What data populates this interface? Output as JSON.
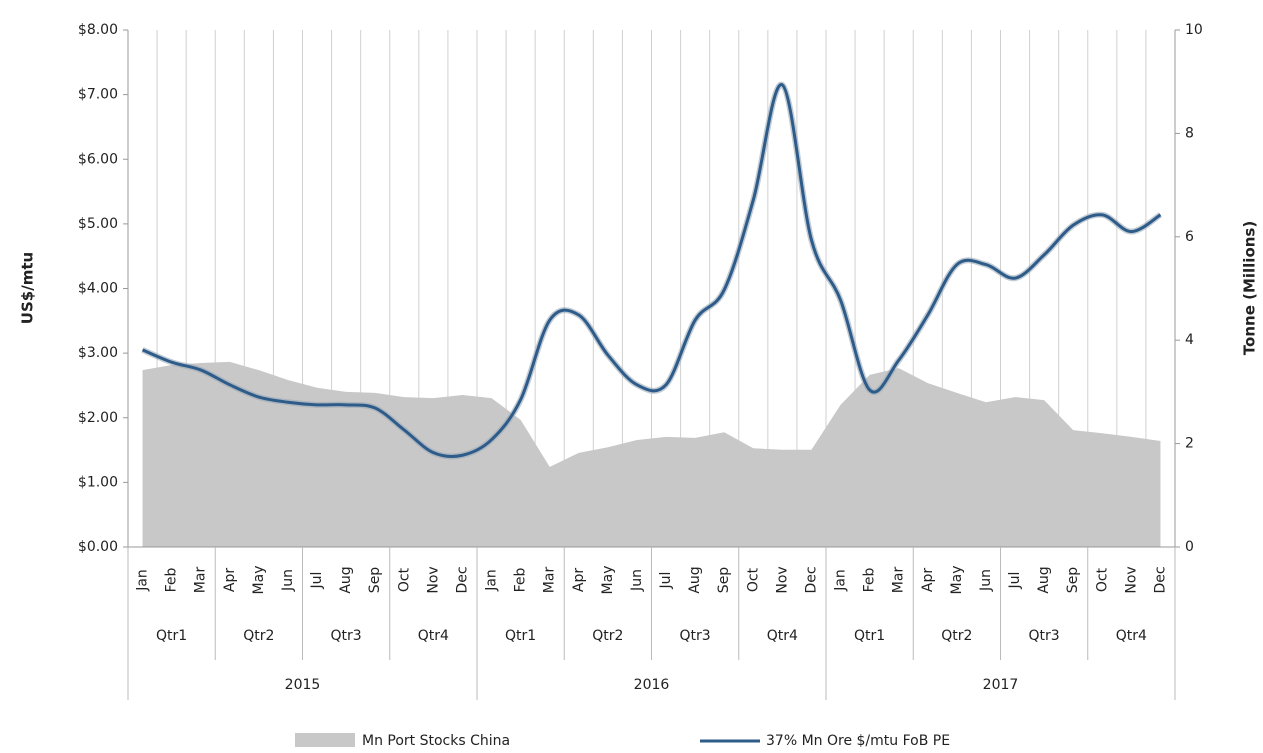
{
  "chart_data": {
    "type": "line",
    "categories": [
      "Jan",
      "Feb",
      "Mar",
      "Apr",
      "May",
      "Jun",
      "Jul",
      "Aug",
      "Sep",
      "Oct",
      "Nov",
      "Dec",
      "Jan",
      "Feb",
      "Mar",
      "Apr",
      "May",
      "Jun",
      "Jul",
      "Aug",
      "Sep",
      "Oct",
      "Nov",
      "Dec",
      "Jan",
      "Feb",
      "Mar",
      "Apr",
      "May",
      "Jun",
      "Jul",
      "Aug",
      "Sep",
      "Oct",
      "Nov",
      "Dec"
    ],
    "quarters": [
      "Qtr1",
      "Qtr2",
      "Qtr3",
      "Qtr4",
      "Qtr1",
      "Qtr2",
      "Qtr3",
      "Qtr4",
      "Qtr1",
      "Qtr2",
      "Qtr3",
      "Qtr4"
    ],
    "years": [
      "2015",
      "2016",
      "2017"
    ],
    "y_label": "US$/mtu",
    "y2_label": "Tonne (Millions)",
    "ylim": [
      0,
      8
    ],
    "yticks": [
      {
        "value": 0,
        "label": "$0.00"
      },
      {
        "value": 1,
        "label": "$1.00"
      },
      {
        "value": 2,
        "label": "$2.00"
      },
      {
        "value": 3,
        "label": "$3.00"
      },
      {
        "value": 4,
        "label": "$4.00"
      },
      {
        "value": 5,
        "label": "$5.00"
      },
      {
        "value": 6,
        "label": "$6.00"
      },
      {
        "value": 7,
        "label": "$7.00"
      },
      {
        "value": 8,
        "label": "$8.00"
      }
    ],
    "y2lim": [
      0,
      10
    ],
    "y2ticks": [
      0,
      2,
      4,
      6,
      8,
      10
    ],
    "xgrid": true,
    "legend": "bottom",
    "series": [
      {
        "name": "Mn Port Stocks China",
        "type": "area",
        "axis": "y2",
        "color": "#c8c8c8",
        "values": [
          3.42,
          3.52,
          3.56,
          3.58,
          3.42,
          3.23,
          3.08,
          3.0,
          2.98,
          2.9,
          2.88,
          2.94,
          2.88,
          2.46,
          1.55,
          1.82,
          1.93,
          2.07,
          2.13,
          2.11,
          2.22,
          1.91,
          1.88,
          1.88,
          2.75,
          3.33,
          3.46,
          3.17,
          2.98,
          2.8,
          2.9,
          2.84,
          2.26,
          2.2,
          2.13,
          2.05
        ]
      },
      {
        "name": "37% Mn Ore $/mtu FoB PE",
        "type": "line",
        "axis": "y",
        "color": "#2e5c8a",
        "values": [
          3.05,
          2.86,
          2.74,
          2.51,
          2.32,
          2.24,
          2.2,
          2.2,
          2.15,
          1.81,
          1.46,
          1.42,
          1.66,
          2.28,
          3.51,
          3.59,
          2.97,
          2.51,
          2.51,
          3.51,
          3.98,
          5.37,
          7.15,
          4.75,
          3.82,
          2.43,
          2.89,
          3.59,
          4.37,
          4.37,
          4.16,
          4.52,
          4.98,
          5.14,
          4.88,
          5.14
        ]
      }
    ]
  }
}
